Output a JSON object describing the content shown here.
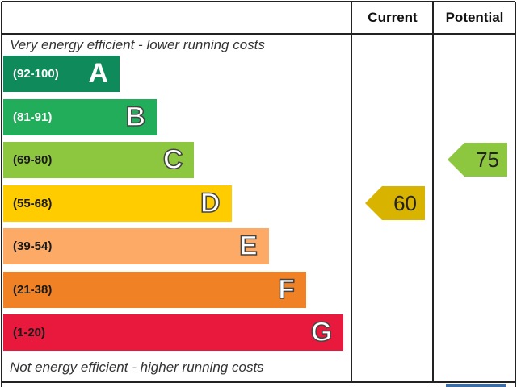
{
  "header": {
    "current_label": "Current",
    "potential_label": "Potential"
  },
  "captions": {
    "top": "Very energy efficient - lower running costs",
    "bottom": "Not energy efficient - higher running costs"
  },
  "chart_data": {
    "type": "bar",
    "categories": [
      "A",
      "B",
      "C",
      "D",
      "E",
      "F",
      "G"
    ],
    "bands": [
      {
        "letter": "A",
        "range": "(92-100)",
        "color": "#0f8a5a",
        "text_color": "#ffffff"
      },
      {
        "letter": "B",
        "range": "(81-91)",
        "color": "#22ad5b",
        "text_color": "#ffffff"
      },
      {
        "letter": "C",
        "range": "(69-80)",
        "color": "#8dc63f",
        "text_color": "#1a1a1a"
      },
      {
        "letter": "D",
        "range": "(55-68)",
        "color": "#ffcc00",
        "text_color": "#1a1a1a"
      },
      {
        "letter": "E",
        "range": "(39-54)",
        "color": "#fcaa65",
        "text_color": "#1a1a1a"
      },
      {
        "letter": "F",
        "range": "(21-38)",
        "color": "#f08125",
        "text_color": "#1a1a1a"
      },
      {
        "letter": "G",
        "range": "(1-20)",
        "color": "#e8193c",
        "text_color": "#1a1a1a"
      }
    ],
    "current": {
      "value": 60,
      "band": "D",
      "color": "#d8b400"
    },
    "potential": {
      "value": 75,
      "band": "C",
      "color": "#8dc63f"
    }
  }
}
